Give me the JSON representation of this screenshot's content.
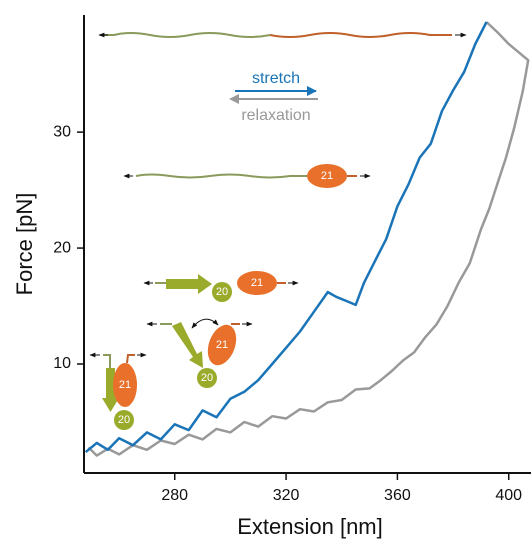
{
  "chart_data": {
    "type": "line",
    "xlabel": "Extension [nm]",
    "ylabel": "Force [pN]",
    "xlim": [
      247.4,
      408
    ],
    "ylim": [
      0.6,
      40.1
    ],
    "xticks": [
      280,
      320,
      360,
      400
    ],
    "yticks": [
      10,
      20,
      30
    ],
    "series": [
      {
        "name": "relaxation",
        "color": "#999999",
        "x": [
          392,
          396,
          400,
          404,
          407,
          405,
          402,
          399,
          396,
          393,
          390,
          386,
          382,
          378,
          374,
          370,
          366,
          362,
          358,
          354,
          350,
          345,
          340,
          335,
          330,
          325,
          320,
          315,
          310,
          305,
          300,
          295,
          290,
          285,
          280,
          275,
          270,
          265,
          260,
          256,
          252,
          249
        ],
        "values": [
          39.5,
          38.6,
          37.6,
          36.8,
          36.2,
          33.5,
          30.4,
          27.8,
          25.6,
          23.4,
          21.6,
          18.7,
          17.0,
          15.0,
          13.4,
          12.3,
          11.0,
          10.3,
          9.4,
          8.6,
          7.9,
          7.8,
          6.9,
          6.7,
          5.9,
          6.1,
          5.3,
          5.5,
          4.6,
          5.0,
          4.1,
          4.4,
          3.5,
          3.9,
          3.1,
          3.4,
          2.6,
          3.0,
          2.2,
          2.7,
          2.1,
          2.8
        ]
      },
      {
        "name": "stretch",
        "color": "#1a74b8",
        "x": [
          248,
          252,
          256,
          260,
          265,
          270,
          275,
          280,
          285,
          290,
          295,
          300,
          305,
          310,
          315,
          320,
          325,
          330,
          335,
          338,
          342,
          345,
          348,
          352,
          356,
          360,
          364,
          368,
          372,
          376,
          380,
          384,
          388,
          392
        ],
        "values": [
          2.4,
          3.2,
          2.6,
          3.6,
          3.0,
          4.1,
          3.5,
          4.8,
          4.3,
          6.0,
          5.4,
          7.0,
          7.6,
          8.6,
          10.0,
          11.4,
          12.8,
          14.5,
          16.2,
          15.8,
          15.4,
          15.1,
          17.0,
          18.9,
          20.8,
          23.6,
          25.5,
          27.8,
          29.0,
          31.8,
          33.6,
          35.2,
          37.6,
          39.5
        ]
      }
    ],
    "annotations": [
      "21",
      "20",
      "21",
      "21",
      "20",
      "21",
      "20"
    ]
  }
}
